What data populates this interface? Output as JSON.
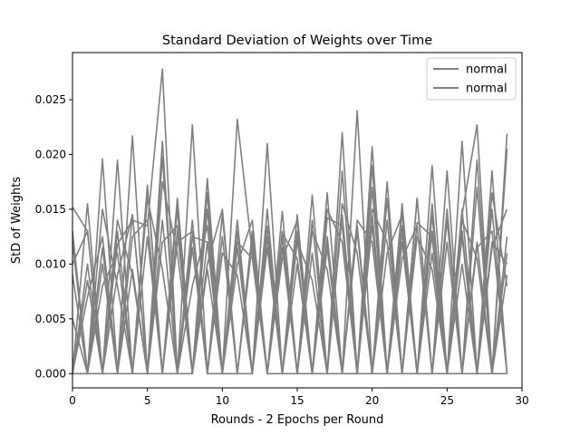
{
  "chart_data": {
    "type": "line",
    "title": "Standard Deviation of Weights over Time",
    "xlabel": "Rounds - 2 Epochs per Round",
    "ylabel": "StD of Weights",
    "xlim": [
      0,
      30
    ],
    "ylim": [
      -0.0013,
      0.0293
    ],
    "xticks": [
      0,
      5,
      10,
      15,
      20,
      25,
      30
    ],
    "xtick_labels": [
      "0",
      "5",
      "10",
      "15",
      "20",
      "25",
      "30"
    ],
    "yticks": [
      0.0,
      0.005,
      0.01,
      0.015,
      0.02,
      0.025
    ],
    "ytick_labels": [
      "0.000",
      "0.005",
      "0.010",
      "0.015",
      "0.020",
      "0.025"
    ],
    "grid": false,
    "legend": {
      "position": "top-right",
      "entries": [
        "normal",
        "normal"
      ]
    },
    "line_color": "#808080",
    "x": [
      0,
      1,
      2,
      3,
      4,
      5,
      6,
      7,
      8,
      9,
      10,
      11,
      12,
      13,
      14,
      15,
      16,
      17,
      18,
      19,
      20,
      21,
      22,
      23,
      24,
      25,
      26,
      27,
      28,
      29
    ],
    "series": [
      {
        "name": "normal",
        "values": [
          0.0152,
          0.013,
          0.0,
          0.0118,
          0.014,
          0.0135,
          0.0278,
          0.0,
          0.0125,
          0.012,
          0.0,
          0.0232,
          0.011,
          0.0,
          0.0128,
          0.0105,
          0.0,
          0.0142,
          0.0135,
          0.0,
          0.015,
          0.012,
          0.0,
          0.0138,
          0.0125,
          0.0,
          0.0145,
          0.0227,
          0.0,
          0.0219
        ]
      },
      {
        "name": "normal",
        "values": [
          0.0,
          0.0155,
          0.0,
          0.0195,
          0.0,
          0.017,
          0.0,
          0.015,
          0.0,
          0.0178,
          0.0,
          0.013,
          0.0,
          0.021,
          0.0,
          0.0125,
          0.0,
          0.0165,
          0.0,
          0.024,
          0.0,
          0.0175,
          0.0,
          0.016,
          0.0,
          0.0185,
          0.0,
          0.0195,
          0.0,
          0.0205
        ]
      },
      {
        "values": [
          0.013,
          0.0,
          0.0196,
          0.0,
          0.0217,
          0.0,
          0.0212,
          0.0,
          0.0227,
          0.0,
          0.0145,
          0.0,
          0.012,
          0.0,
          0.0148,
          0.0,
          0.0163,
          0.0,
          0.022,
          0.0,
          0.0207,
          0.0,
          0.015,
          0.0,
          0.019,
          0.0,
          0.0212,
          0.0,
          0.0185,
          0.0
        ]
      },
      {
        "values": [
          0.0,
          0.0,
          0.01,
          0.0,
          0.0,
          0.0172,
          0.0,
          0.012,
          0.013,
          0.0,
          0.0,
          0.0115,
          0.0,
          0.0125,
          0.0,
          0.0,
          0.014,
          0.0,
          0.0,
          0.0,
          0.017,
          0.0,
          0.0135,
          0.0,
          0.0,
          0.014,
          0.0,
          0.0,
          0.015,
          0.0
        ]
      },
      {
        "values": [
          0.009,
          0.0,
          0.015,
          0.008,
          0.0,
          0.016,
          0.0095,
          0.0,
          0.014,
          0.0,
          0.011,
          0.009,
          0.0,
          0.0135,
          0.0,
          0.012,
          0.0085,
          0.0,
          0.0155,
          0.011,
          0.0,
          0.016,
          0.0,
          0.0125,
          0.0095,
          0.0,
          0.015,
          0.0,
          0.012,
          0.01
        ]
      },
      {
        "values": [
          0.0,
          0.01,
          0.0,
          0.009,
          0.0145,
          0.0,
          0.012,
          0.0135,
          0.0,
          0.01,
          0.015,
          0.0,
          0.0125,
          0.0,
          0.0105,
          0.014,
          0.0,
          0.0115,
          0.0,
          0.0135,
          0.0,
          0.011,
          0.0145,
          0.0,
          0.013,
          0.0,
          0.014,
          0.0105,
          0.0,
          0.0125
        ]
      },
      {
        "values": [
          0.012,
          0.0,
          0.0,
          0.013,
          0.0,
          0.0,
          0.0198,
          0.0,
          0.0,
          0.015,
          0.0,
          0.0,
          0.013,
          0.0,
          0.0,
          0.0145,
          0.0,
          0.0,
          0.0185,
          0.0,
          0.0,
          0.014,
          0.0,
          0.0,
          0.0155,
          0.0,
          0.0,
          0.017,
          0.0,
          0.0
        ]
      },
      {
        "values": [
          0.0,
          0.007,
          0.0125,
          0.0,
          0.0095,
          0.0,
          0.014,
          0.0,
          0.008,
          0.0135,
          0.0,
          0.012,
          0.0105,
          0.0,
          0.0115,
          0.0,
          0.013,
          0.0095,
          0.0,
          0.014,
          0.012,
          0.0,
          0.0105,
          0.0135,
          0.0,
          0.012,
          0.0,
          0.0115,
          0.013,
          0.0
        ]
      },
      {
        "values": [
          0.005,
          0.0,
          0.008,
          0.011,
          0.0,
          0.0125,
          0.0,
          0.016,
          0.0,
          0.0095,
          0.0,
          0.014,
          0.0,
          0.015,
          0.0,
          0.01,
          0.0,
          0.015,
          0.012,
          0.0,
          0.0135,
          0.0,
          0.0155,
          0.0,
          0.011,
          0.0,
          0.013,
          0.0,
          0.0165,
          0.008
        ]
      },
      {
        "values": [
          0.0,
          0.0085,
          0.0,
          0.014,
          0.009,
          0.0,
          0.0175,
          0.011,
          0.0,
          0.012,
          0.0,
          0.01,
          0.014,
          0.0,
          0.0125,
          0.0,
          0.011,
          0.0,
          0.0145,
          0.0,
          0.019,
          0.0,
          0.012,
          0.0,
          0.0145,
          0.0,
          0.01,
          0.0,
          0.0115,
          0.015
        ]
      },
      {
        "values": [
          0.01,
          0.013,
          0.0,
          0.0,
          0.0145,
          0.0,
          0.0,
          0.013,
          0.0,
          0.0165,
          0.0,
          0.0,
          0.012,
          0.0,
          0.013,
          0.0,
          0.0,
          0.0125,
          0.0,
          0.0,
          0.0145,
          0.0,
          0.0,
          0.016,
          0.0,
          0.0,
          0.0125,
          0.0,
          0.0,
          0.009
        ]
      },
      {
        "values": [
          0.0,
          0.0,
          0.0115,
          0.0,
          0.0125,
          0.014,
          0.0,
          0.0,
          0.0115,
          0.0,
          0.0125,
          0.0,
          0.0,
          0.0115,
          0.0,
          0.013,
          0.0,
          0.012,
          0.0,
          0.013,
          0.0,
          0.0,
          0.013,
          0.0,
          0.0,
          0.015,
          0.0,
          0.012,
          0.0,
          0.011
        ]
      }
    ]
  }
}
